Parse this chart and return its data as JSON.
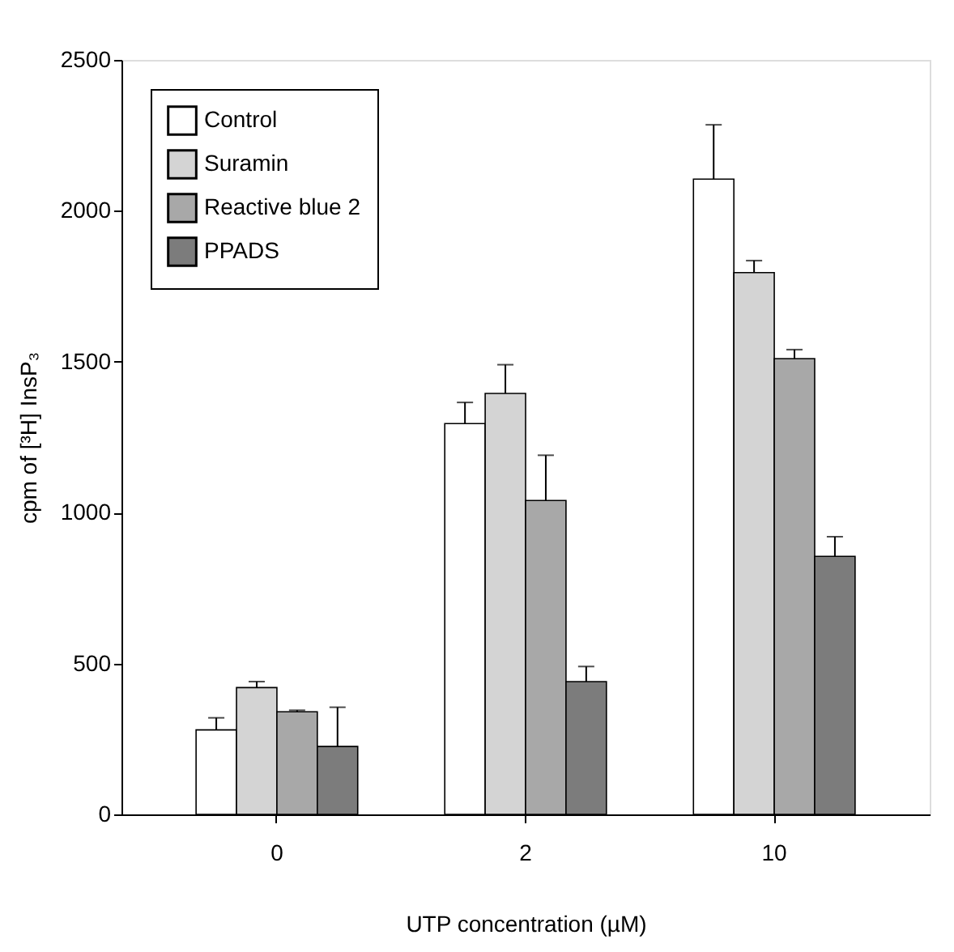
{
  "chart_data": {
    "type": "bar",
    "xlabel": "UTP concentration (µM)",
    "ylabel": "cpm of [³H] InsP₃",
    "categories": [
      "0",
      "2",
      "10"
    ],
    "series": [
      {
        "name": "Control",
        "color": "#ffffff",
        "values": [
          280,
          1295,
          2105
        ],
        "errors": [
          [
            280,
            320
          ],
          [
            1295,
            1365
          ],
          [
            2105,
            2285
          ]
        ]
      },
      {
        "name": "Suramin",
        "color": "#d4d4d4",
        "values": [
          420,
          1395,
          1795
        ],
        "errors": [
          [
            420,
            440
          ],
          [
            1395,
            1490
          ],
          [
            1795,
            1835
          ]
        ]
      },
      {
        "name": "Reactive blue 2",
        "color": "#a8a8a8",
        "values": [
          340,
          1040,
          1510
        ],
        "errors": [
          [
            340,
            345
          ],
          [
            1040,
            1190
          ],
          [
            1510,
            1540
          ]
        ]
      },
      {
        "name": "PPADS",
        "color": "#7c7c7c",
        "values": [
          225,
          440,
          855
        ],
        "errors": [
          [
            225,
            355
          ],
          [
            440,
            490
          ],
          [
            855,
            920
          ]
        ]
      }
    ],
    "ylim": [
      0,
      2500
    ],
    "yticks": [
      0,
      500,
      1000,
      1500,
      2000,
      2500
    ],
    "grid": false,
    "legend": "top left"
  }
}
